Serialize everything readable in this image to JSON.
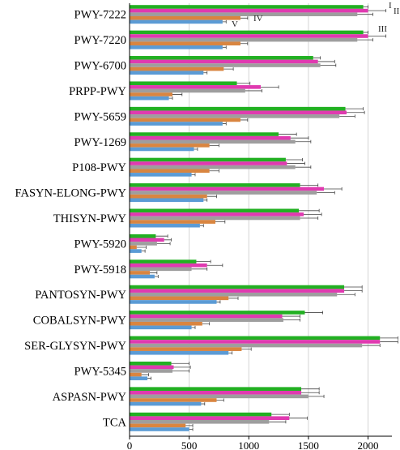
{
  "chart_data": {
    "type": "bar",
    "orientation": "horizontal",
    "title": "",
    "xlabel": "",
    "ylabel": "",
    "xlim": [
      0,
      2200
    ],
    "xticks": [
      0,
      500,
      1000,
      1500,
      2000
    ],
    "grid": true,
    "legend": "inline labels at top-right of first category",
    "categories": [
      "PWY-7222",
      "PWY-7220",
      "PWY-6700",
      "PRPP-PWY",
      "PWY-5659",
      "PWY-1269",
      "P108-PWY",
      "FASYN-ELONG-PWY",
      "THISYN-PWY",
      "PWY-5920",
      "PWY-5918",
      "PANTOSYN-PWY",
      "COBALSYN-PWY",
      "SER-GLYSYN-PWY",
      "PWY-5345",
      "ASPASN-PWY",
      "TCA"
    ],
    "series": [
      {
        "name": "I",
        "color": "#22b022",
        "values": [
          1960,
          1960,
          1540,
          900,
          1810,
          1250,
          1310,
          1430,
          1420,
          220,
          560,
          1800,
          1470,
          2100,
          350,
          1440,
          1190
        ]
      },
      {
        "name": "II",
        "color": "#e03ab0",
        "values": [
          2000,
          2000,
          1580,
          1100,
          1820,
          1350,
          1320,
          1630,
          1460,
          290,
          650,
          1800,
          1280,
          2100,
          370,
          1440,
          1340
        ]
      },
      {
        "name": "III",
        "color": "#9e9e9e",
        "values": [
          1910,
          1910,
          1600,
          970,
          1760,
          1390,
          1390,
          1570,
          1430,
          230,
          520,
          1740,
          1290,
          1950,
          360,
          1500,
          1170
        ]
      },
      {
        "name": "IV",
        "color": "#d98540",
        "values": [
          930,
          930,
          790,
          360,
          930,
          670,
          670,
          650,
          720,
          60,
          170,
          830,
          610,
          940,
          100,
          730,
          470
        ]
      },
      {
        "name": "V",
        "color": "#5b9bd5",
        "values": [
          780,
          780,
          620,
          330,
          780,
          540,
          520,
          620,
          590,
          100,
          210,
          730,
          520,
          830,
          150,
          600,
          500
        ]
      }
    ],
    "errors": [
      [
        40,
        40,
        60,
        110,
        150,
        150,
        140,
        150,
        170,
        100,
        120,
        150,
        150,
        150,
        150,
        150,
        150
      ],
      [
        150,
        150,
        140,
        150,
        150,
        150,
        150,
        150,
        150,
        60,
        130,
        150,
        150,
        150,
        140,
        150,
        150
      ],
      [
        130,
        130,
        130,
        140,
        130,
        130,
        130,
        150,
        150,
        110,
        130,
        150,
        140,
        150,
        140,
        130,
        140
      ],
      [
        60,
        60,
        80,
        80,
        60,
        80,
        80,
        80,
        80,
        80,
        60,
        80,
        60,
        80,
        60,
        60,
        60
      ],
      [
        30,
        30,
        30,
        30,
        30,
        30,
        30,
        30,
        30,
        30,
        30,
        30,
        30,
        30,
        30,
        30,
        30
      ]
    ]
  }
}
